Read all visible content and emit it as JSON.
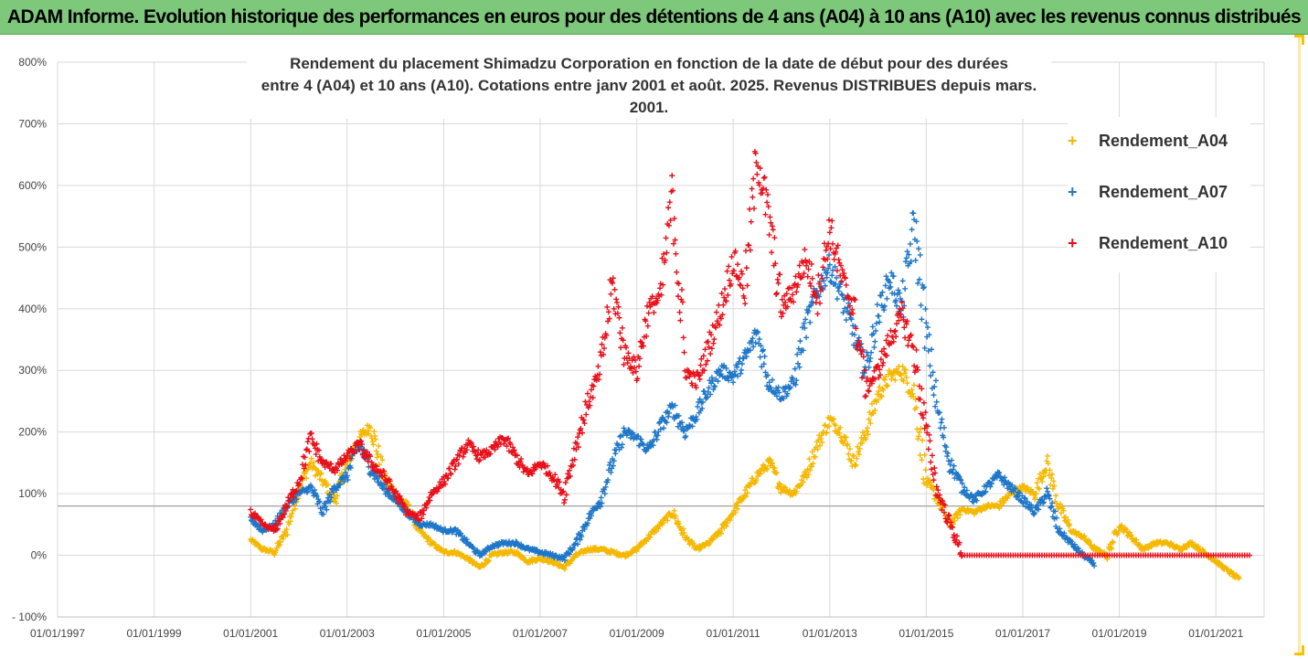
{
  "header": {
    "title": "ADAM Informe. Evolution historique des performances en euros pour des détentions de 4 ans (A04) à 10 ans (A10) avec les revenus connus distribués"
  },
  "colors": {
    "header_bg": "#7dc87b",
    "frame_accent": "#f2c400",
    "A04": "#f5b800",
    "A07": "#1f77c8",
    "A10": "#e8101a"
  },
  "chart_data": {
    "type": "scatter",
    "title_lines": [
      "Rendement du placement Shimadzu Corporation en fonction de la date de début pour des durées",
      "entre 4 (A04) et 10 ans (A10). Cotations entre janv 2001 et août. 2025. Revenus DISTRIBUES depuis mars. 2001."
    ],
    "x_ticks": [
      "01/01/1997",
      "01/01/1999",
      "01/01/2001",
      "01/01/2003",
      "01/01/2005",
      "01/01/2007",
      "01/01/2009",
      "01/01/2011",
      "01/01/2013",
      "01/01/2015",
      "01/01/2017",
      "01/01/2019",
      "01/01/2021"
    ],
    "xlim": [
      "1997-01-01",
      "2022-01-01"
    ],
    "y_ticks": [
      "800%",
      "700%",
      "600%",
      "500%",
      "400%",
      "300%",
      "200%",
      "100%",
      "0%",
      "- 100%"
    ],
    "ylim": [
      -100,
      800
    ],
    "reference_line": 80,
    "grid": true,
    "legend_position": "right",
    "series": [
      {
        "name": "Rendement_A04",
        "color": "#f5b800",
        "points": [
          [
            "2001-01",
            25
          ],
          [
            "2001-04",
            10
          ],
          [
            "2001-07",
            5
          ],
          [
            "2001-10",
            40
          ],
          [
            "2002-01",
            110
          ],
          [
            "2002-04",
            150
          ],
          [
            "2002-07",
            120
          ],
          [
            "2002-10",
            90
          ],
          [
            "2003-01",
            150
          ],
          [
            "2003-04",
            190
          ],
          [
            "2003-07",
            210
          ],
          [
            "2003-10",
            130
          ],
          [
            "2004-01",
            100
          ],
          [
            "2004-04",
            80
          ],
          [
            "2004-07",
            40
          ],
          [
            "2004-10",
            20
          ],
          [
            "2005-01",
            5
          ],
          [
            "2005-04",
            5
          ],
          [
            "2005-07",
            -5
          ],
          [
            "2005-10",
            -20
          ],
          [
            "2006-01",
            0
          ],
          [
            "2006-04",
            5
          ],
          [
            "2006-07",
            5
          ],
          [
            "2006-10",
            -10
          ],
          [
            "2007-01",
            -5
          ],
          [
            "2007-04",
            -10
          ],
          [
            "2007-07",
            -20
          ],
          [
            "2007-10",
            0
          ],
          [
            "2008-01",
            10
          ],
          [
            "2008-04",
            10
          ],
          [
            "2008-07",
            5
          ],
          [
            "2008-10",
            0
          ],
          [
            "2009-01",
            10
          ],
          [
            "2009-04",
            30
          ],
          [
            "2009-07",
            50
          ],
          [
            "2009-10",
            70
          ],
          [
            "2010-01",
            30
          ],
          [
            "2010-04",
            10
          ],
          [
            "2010-07",
            20
          ],
          [
            "2010-10",
            40
          ],
          [
            "2011-01",
            70
          ],
          [
            "2011-04",
            100
          ],
          [
            "2011-07",
            130
          ],
          [
            "2011-10",
            150
          ],
          [
            "2012-01",
            110
          ],
          [
            "2012-04",
            100
          ],
          [
            "2012-07",
            130
          ],
          [
            "2012-10",
            180
          ],
          [
            "2013-01",
            220
          ],
          [
            "2013-04",
            200
          ],
          [
            "2013-07",
            150
          ],
          [
            "2013-10",
            200
          ],
          [
            "2014-01",
            260
          ],
          [
            "2014-04",
            290
          ],
          [
            "2014-07",
            300
          ],
          [
            "2014-10",
            260
          ],
          [
            "2015-01",
            120
          ],
          [
            "2015-04",
            90
          ],
          [
            "2015-07",
            50
          ],
          [
            "2015-10",
            75
          ],
          [
            "2016-01",
            70
          ],
          [
            "2016-04",
            80
          ],
          [
            "2016-07",
            80
          ],
          [
            "2016-10",
            100
          ],
          [
            "2017-01",
            110
          ],
          [
            "2017-04",
            100
          ],
          [
            "2017-07",
            150
          ],
          [
            "2017-10",
            80
          ],
          [
            "2018-01",
            40
          ],
          [
            "2018-04",
            30
          ],
          [
            "2018-07",
            10
          ],
          [
            "2018-10",
            0
          ],
          [
            "2019-01",
            50
          ],
          [
            "2019-04",
            30
          ],
          [
            "2019-07",
            10
          ],
          [
            "2019-10",
            20
          ],
          [
            "2020-01",
            20
          ],
          [
            "2020-04",
            10
          ],
          [
            "2020-07",
            20
          ],
          [
            "2020-10",
            5
          ],
          [
            "2021-01",
            -10
          ],
          [
            "2021-04",
            -25
          ],
          [
            "2021-07",
            -40
          ]
        ]
      },
      {
        "name": "Rendement_A07",
        "color": "#1f77c8",
        "points": [
          [
            "2001-01",
            60
          ],
          [
            "2001-04",
            40
          ],
          [
            "2001-07",
            50
          ],
          [
            "2001-10",
            80
          ],
          [
            "2002-01",
            100
          ],
          [
            "2002-04",
            110
          ],
          [
            "2002-07",
            70
          ],
          [
            "2002-10",
            110
          ],
          [
            "2003-01",
            130
          ],
          [
            "2003-04",
            180
          ],
          [
            "2003-07",
            140
          ],
          [
            "2003-10",
            110
          ],
          [
            "2004-01",
            90
          ],
          [
            "2004-04",
            70
          ],
          [
            "2004-07",
            50
          ],
          [
            "2004-10",
            50
          ],
          [
            "2005-01",
            40
          ],
          [
            "2005-04",
            40
          ],
          [
            "2005-07",
            20
          ],
          [
            "2005-10",
            0
          ],
          [
            "2006-01",
            15
          ],
          [
            "2006-04",
            20
          ],
          [
            "2006-07",
            20
          ],
          [
            "2006-10",
            10
          ],
          [
            "2007-01",
            5
          ],
          [
            "2007-04",
            0
          ],
          [
            "2007-07",
            -5
          ],
          [
            "2007-10",
            20
          ],
          [
            "2008-01",
            60
          ],
          [
            "2008-04",
            90
          ],
          [
            "2008-07",
            150
          ],
          [
            "2008-10",
            200
          ],
          [
            "2009-01",
            190
          ],
          [
            "2009-04",
            170
          ],
          [
            "2009-07",
            210
          ],
          [
            "2009-10",
            240
          ],
          [
            "2010-01",
            200
          ],
          [
            "2010-04",
            230
          ],
          [
            "2010-07",
            270
          ],
          [
            "2010-10",
            300
          ],
          [
            "2011-01",
            290
          ],
          [
            "2011-04",
            320
          ],
          [
            "2011-07",
            360
          ],
          [
            "2011-10",
            280
          ],
          [
            "2012-01",
            260
          ],
          [
            "2012-04",
            280
          ],
          [
            "2012-07",
            370
          ],
          [
            "2012-10",
            430
          ],
          [
            "2013-01",
            470
          ],
          [
            "2013-04",
            420
          ],
          [
            "2013-07",
            360
          ],
          [
            "2013-10",
            300
          ],
          [
            "2014-01",
            390
          ],
          [
            "2014-04",
            450
          ],
          [
            "2014-07",
            400
          ],
          [
            "2014-10",
            540
          ],
          [
            "2015-01",
            360
          ],
          [
            "2015-04",
            230
          ],
          [
            "2015-07",
            150
          ],
          [
            "2015-10",
            110
          ],
          [
            "2016-01",
            90
          ],
          [
            "2016-04",
            110
          ],
          [
            "2016-07",
            130
          ],
          [
            "2016-10",
            110
          ],
          [
            "2017-01",
            90
          ],
          [
            "2017-04",
            70
          ],
          [
            "2017-07",
            100
          ],
          [
            "2017-10",
            40
          ],
          [
            "2018-01",
            20
          ],
          [
            "2018-04",
            0
          ],
          [
            "2018-07",
            -15
          ]
        ]
      },
      {
        "name": "Rendement_A10",
        "color": "#e8101a",
        "points": [
          [
            "2001-01",
            70
          ],
          [
            "2001-04",
            50
          ],
          [
            "2001-07",
            40
          ],
          [
            "2001-10",
            80
          ],
          [
            "2002-01",
            120
          ],
          [
            "2002-04",
            190
          ],
          [
            "2002-07",
            150
          ],
          [
            "2002-10",
            140
          ],
          [
            "2003-01",
            160
          ],
          [
            "2003-04",
            180
          ],
          [
            "2003-07",
            150
          ],
          [
            "2003-10",
            130
          ],
          [
            "2004-01",
            100
          ],
          [
            "2004-04",
            70
          ],
          [
            "2004-07",
            60
          ],
          [
            "2004-10",
            100
          ],
          [
            "2005-01",
            120
          ],
          [
            "2005-04",
            150
          ],
          [
            "2005-07",
            180
          ],
          [
            "2005-10",
            160
          ],
          [
            "2006-01",
            170
          ],
          [
            "2006-04",
            190
          ],
          [
            "2006-07",
            160
          ],
          [
            "2006-10",
            130
          ],
          [
            "2007-01",
            150
          ],
          [
            "2007-04",
            130
          ],
          [
            "2007-07",
            100
          ],
          [
            "2007-10",
            180
          ],
          [
            "2008-01",
            250
          ],
          [
            "2008-04",
            300
          ],
          [
            "2008-07",
            440
          ],
          [
            "2008-10",
            330
          ],
          [
            "2009-01",
            300
          ],
          [
            "2009-04",
            400
          ],
          [
            "2009-07",
            420
          ],
          [
            "2009-10",
            590
          ],
          [
            "2010-01",
            300
          ],
          [
            "2010-04",
            280
          ],
          [
            "2010-07",
            340
          ],
          [
            "2010-10",
            400
          ],
          [
            "2011-01",
            480
          ],
          [
            "2011-04",
            430
          ],
          [
            "2011-07",
            650
          ],
          [
            "2011-10",
            540
          ],
          [
            "2012-01",
            400
          ],
          [
            "2012-04",
            430
          ],
          [
            "2012-07",
            480
          ],
          [
            "2012-10",
            420
          ],
          [
            "2013-01",
            530
          ],
          [
            "2013-04",
            450
          ],
          [
            "2013-07",
            400
          ],
          [
            "2013-10",
            270
          ],
          [
            "2014-01",
            300
          ],
          [
            "2014-04",
            350
          ],
          [
            "2014-07",
            390
          ],
          [
            "2014-10",
            330
          ],
          [
            "2015-01",
            200
          ],
          [
            "2015-04",
            100
          ],
          [
            "2015-07",
            50
          ],
          [
            "2015-10",
            0
          ],
          [
            "2016-01",
            0
          ],
          [
            "2016-04",
            0
          ],
          [
            "2016-07",
            0
          ],
          [
            "2016-10",
            0
          ],
          [
            "2017-01",
            0
          ],
          [
            "2017-04",
            0
          ],
          [
            "2017-07",
            0
          ],
          [
            "2017-10",
            0
          ],
          [
            "2018-01",
            0
          ],
          [
            "2018-04",
            0
          ],
          [
            "2018-07",
            0
          ],
          [
            "2018-10",
            0
          ],
          [
            "2019-01",
            0
          ],
          [
            "2019-04",
            0
          ],
          [
            "2019-07",
            0
          ],
          [
            "2019-10",
            0
          ],
          [
            "2020-01",
            0
          ],
          [
            "2020-04",
            0
          ],
          [
            "2020-07",
            0
          ],
          [
            "2020-10",
            0
          ],
          [
            "2021-01",
            0
          ],
          [
            "2021-04",
            0
          ],
          [
            "2021-07",
            0
          ],
          [
            "2021-10",
            0
          ]
        ]
      }
    ]
  }
}
